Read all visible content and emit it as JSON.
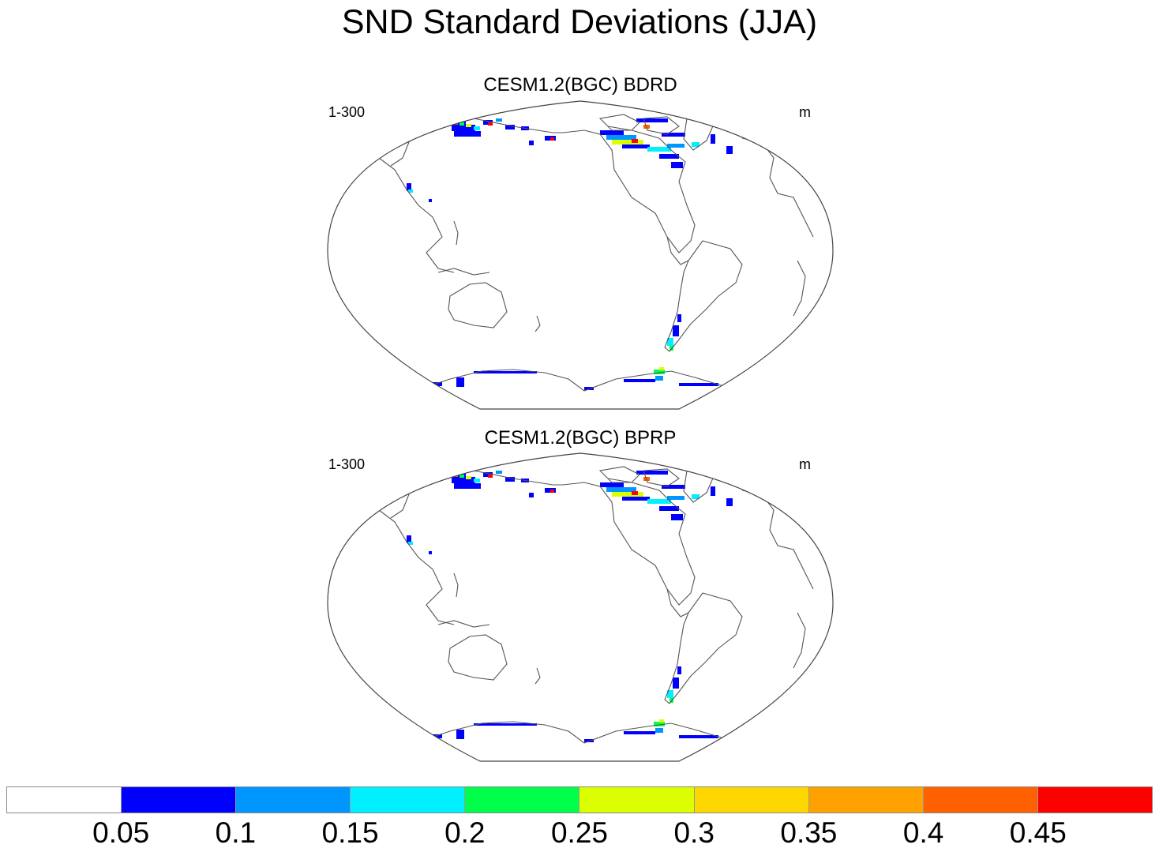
{
  "title": "SND Standard Deviations (JJA)",
  "panels": [
    {
      "title": "CESM1.2(BGC) BDRD",
      "left_label": "1-300",
      "right_label": "m"
    },
    {
      "title": "CESM1.2(BGC) BPRP",
      "left_label": "1-300",
      "right_label": "m"
    }
  ],
  "colorbar": {
    "colors": [
      "#ffffff",
      "#0000ff",
      "#0096ff",
      "#00f0ff",
      "#00ff4a",
      "#dcff00",
      "#ffd700",
      "#ffa200",
      "#ff6000",
      "#ff0000"
    ],
    "labels": [
      "0.05",
      "0.1",
      "0.15",
      "0.2",
      "0.25",
      "0.3",
      "0.35",
      "0.4",
      "0.45"
    ]
  },
  "colors": {
    "coastline": "#555555",
    "border": "#444444"
  }
}
